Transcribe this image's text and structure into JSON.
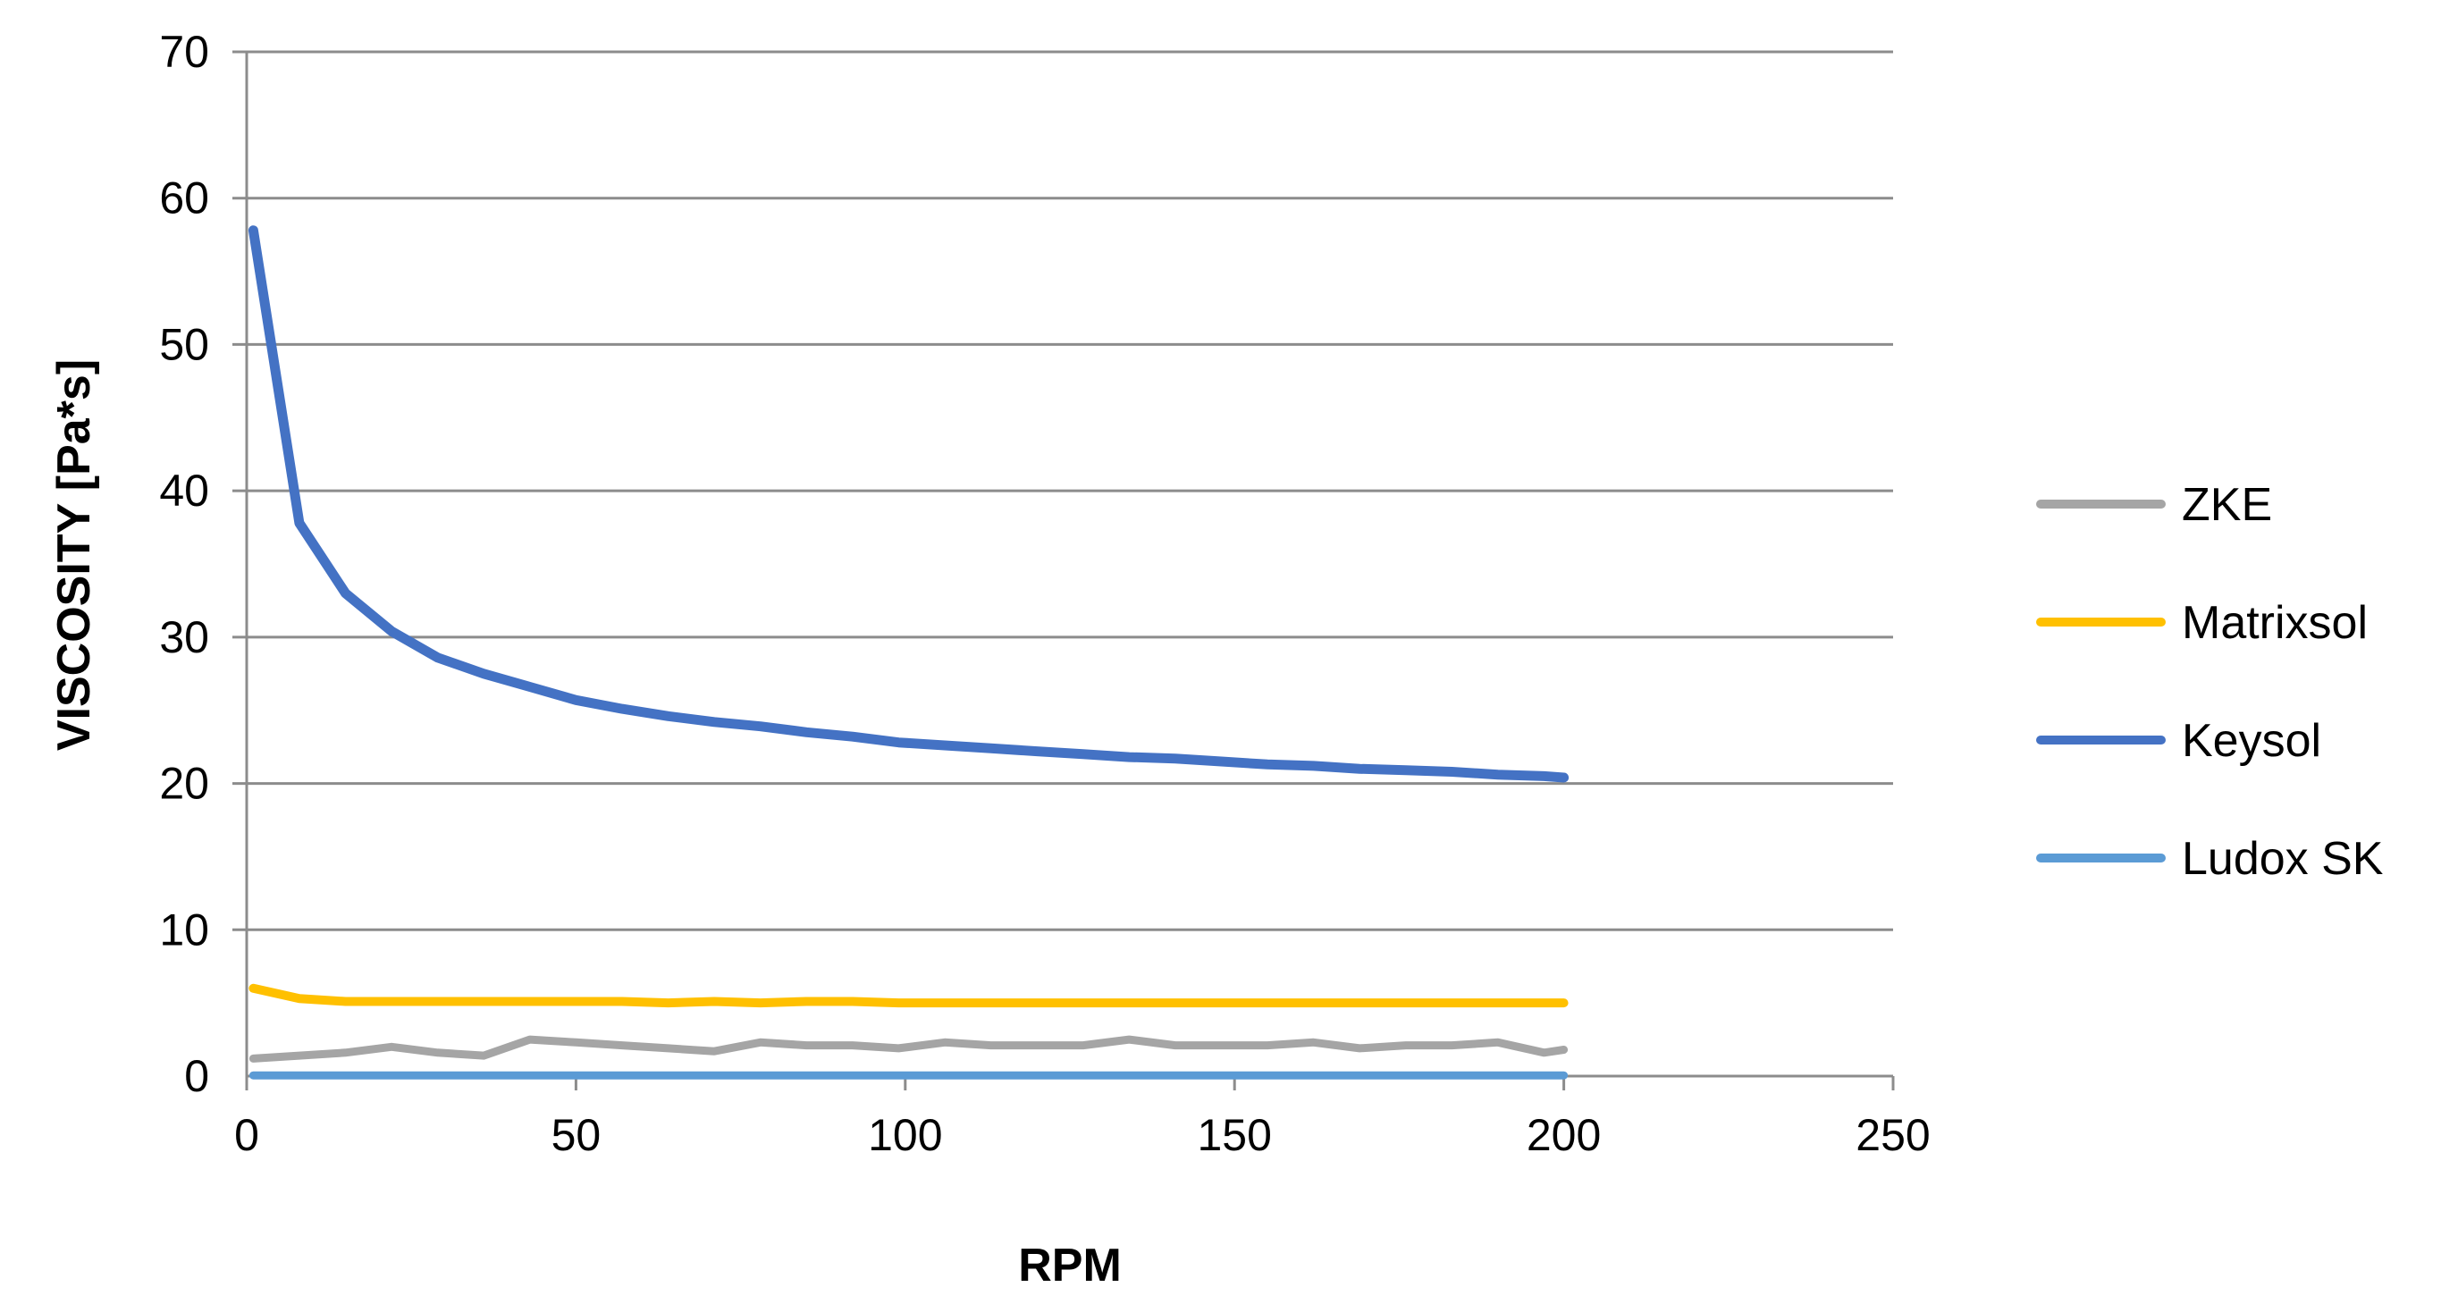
{
  "chart_data": {
    "type": "line",
    "title": "",
    "xlabel": "RPM",
    "ylabel": "VISCOSITY [Pa*s]",
    "xlim": [
      0,
      250
    ],
    "ylim": [
      0,
      70
    ],
    "xticks": [
      "0",
      "50",
      "100",
      "150",
      "200",
      "250"
    ],
    "yticks": [
      "0",
      "10",
      "20",
      "30",
      "40",
      "50",
      "60",
      "70"
    ],
    "grid": true,
    "legend_position": "right",
    "x": [
      1,
      8,
      15,
      22,
      29,
      36,
      43,
      50,
      57,
      64,
      71,
      78,
      85,
      92,
      99,
      106,
      113,
      120,
      127,
      134,
      141,
      148,
      155,
      162,
      169,
      176,
      183,
      190,
      197,
      200
    ],
    "series": [
      {
        "name": "ZKE",
        "color": "#a5a5a5",
        "values": [
          1.2,
          1.4,
          1.6,
          2.0,
          1.6,
          1.4,
          2.5,
          2.3,
          2.1,
          1.9,
          1.7,
          2.3,
          2.1,
          2.1,
          1.9,
          2.3,
          2.1,
          2.1,
          2.1,
          2.5,
          2.1,
          2.1,
          2.1,
          2.3,
          1.9,
          2.1,
          2.1,
          2.3,
          1.6,
          1.8
        ]
      },
      {
        "name": "Matrixsol",
        "color": "#ffc000",
        "values": [
          6.0,
          5.3,
          5.1,
          5.1,
          5.1,
          5.1,
          5.1,
          5.1,
          5.1,
          5.0,
          5.1,
          5.0,
          5.1,
          5.1,
          5.0,
          5.0,
          5.0,
          5.0,
          5.0,
          5.0,
          5.0,
          5.0,
          5.0,
          5.0,
          5.0,
          5.0,
          5.0,
          5.0,
          5.0,
          5.0
        ]
      },
      {
        "name": "Keysol",
        "color": "#4472c4",
        "values": [
          57.8,
          37.8,
          33.0,
          30.4,
          28.6,
          27.5,
          26.6,
          25.7,
          25.1,
          24.6,
          24.2,
          23.9,
          23.5,
          23.2,
          22.8,
          22.6,
          22.4,
          22.2,
          22.0,
          21.8,
          21.7,
          21.5,
          21.3,
          21.2,
          21.0,
          20.9,
          20.8,
          20.6,
          20.5,
          20.4
        ]
      },
      {
        "name": "Ludox SK",
        "color": "#5b9bd5",
        "values": [
          0.05,
          0.05,
          0.05,
          0.05,
          0.05,
          0.05,
          0.05,
          0.05,
          0.05,
          0.05,
          0.05,
          0.05,
          0.05,
          0.05,
          0.05,
          0.05,
          0.05,
          0.05,
          0.05,
          0.05,
          0.05,
          0.05,
          0.05,
          0.05,
          0.05,
          0.05,
          0.05,
          0.05,
          0.05,
          0.05
        ]
      }
    ]
  }
}
